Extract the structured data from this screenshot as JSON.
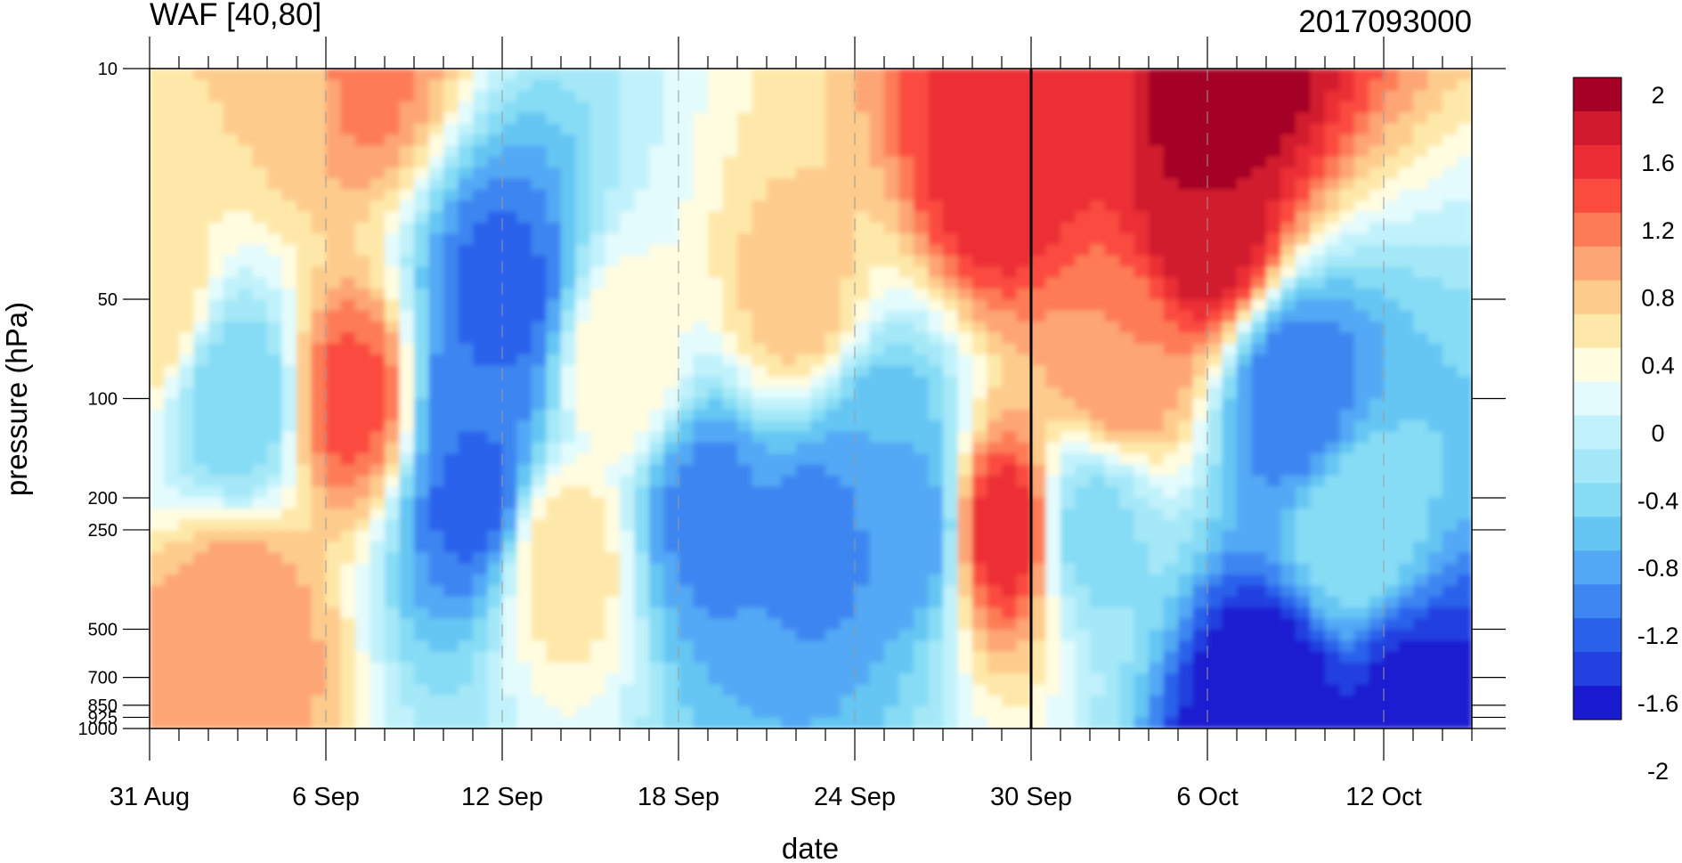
{
  "chart_data": {
    "type": "heatmap",
    "title": "WAF [40,80]",
    "subtitle_right": "2017093000",
    "xlabel": "date",
    "ylabel": "pressure (hPa)",
    "x_tick_labels": [
      "31 Aug",
      "6 Sep",
      "12 Sep",
      "18 Sep",
      "24 Sep",
      "30 Sep",
      "6 Oct",
      "12 Oct"
    ],
    "y_scale": "log",
    "y_tick_values": [
      10,
      50,
      100,
      200,
      250,
      500,
      700,
      850,
      925,
      1000
    ],
    "y_tick_labels": [
      "10",
      "50",
      "100",
      "200",
      "250",
      "500",
      "700",
      "850",
      "925",
      "1000"
    ],
    "ylim": [
      1000,
      10
    ],
    "highlight_date": "30 Sep",
    "colorbar": {
      "levels": [
        2,
        1.6,
        1.2,
        0.8,
        0.4,
        0,
        -0.4,
        -0.8,
        -1.2,
        -1.6,
        -2
      ],
      "labels": [
        "2",
        "1.6",
        "1.2",
        "0.8",
        "0.4",
        "0",
        "-0.4",
        "-0.8",
        "-1.2",
        "-1.6",
        "-2"
      ],
      "colors": [
        "#a50026",
        "#d11a2d",
        "#ec2d35",
        "#fb4b3f",
        "#fd7b57",
        "#fda575",
        "#fdcc8d",
        "#fee8a9",
        "#fffce0",
        "#e3fbfd",
        "#c1f2fb",
        "#a5e8f8",
        "#86dcf5",
        "#65c6f3",
        "#53a9f5",
        "#3e86f1",
        "#2b62ec",
        "#2340e0",
        "#1a1bd1"
      ]
    },
    "regions": [
      {
        "date": "31 Aug",
        "pressure": 50,
        "value": 0.6
      },
      {
        "date": "5 Sep",
        "pressure": 10,
        "value": 0.6
      },
      {
        "date": "7 Sep",
        "pressure": 10,
        "value": 1.1
      },
      {
        "date": "7 Sep",
        "pressure": 100,
        "value": 1.3
      },
      {
        "date": "3 Sep",
        "pressure": 100,
        "value": -0.6
      },
      {
        "date": "3 Sep",
        "pressure": 500,
        "value": 1.0
      },
      {
        "date": "12 Sep",
        "pressure": 50,
        "value": -1.3
      },
      {
        "date": "11 Sep",
        "pressure": 100,
        "value": -1.2
      },
      {
        "date": "11 Sep",
        "pressure": 200,
        "value": -1.3
      },
      {
        "date": "14 Sep",
        "pressure": 300,
        "value": 0.6
      },
      {
        "date": "16 Sep",
        "pressure": 80,
        "value": 0.4
      },
      {
        "date": "19 Sep",
        "pressure": 220,
        "value": -1.1
      },
      {
        "date": "22 Sep",
        "pressure": 50,
        "value": 0.7
      },
      {
        "date": "23 Sep",
        "pressure": 250,
        "value": -1.1
      },
      {
        "date": "25 Sep",
        "pressure": 150,
        "value": -0.8
      },
      {
        "date": "26 Sep",
        "pressure": 250,
        "value": -1.0
      },
      {
        "date": "29 Sep",
        "pressure": 20,
        "value": 1.6
      },
      {
        "date": "29 Sep",
        "pressure": 250,
        "value": 1.6
      },
      {
        "date": "2 Oct",
        "pressure": 10,
        "value": 1.4
      },
      {
        "date": "6 Oct",
        "pressure": 10,
        "value": 2.2
      },
      {
        "date": "6 Oct",
        "pressure": 30,
        "value": 1.8
      },
      {
        "date": "3 Oct",
        "pressure": 80,
        "value": 1.0
      },
      {
        "date": "2 Oct",
        "pressure": 250,
        "value": -0.5
      },
      {
        "date": "9 Oct",
        "pressure": 100,
        "value": -1.2
      },
      {
        "date": "11 Oct",
        "pressure": 250,
        "value": -0.4
      },
      {
        "date": "8 Oct",
        "pressure": 850,
        "value": -1.9
      },
      {
        "date": "13 Oct",
        "pressure": 900,
        "value": -1.7
      }
    ]
  }
}
